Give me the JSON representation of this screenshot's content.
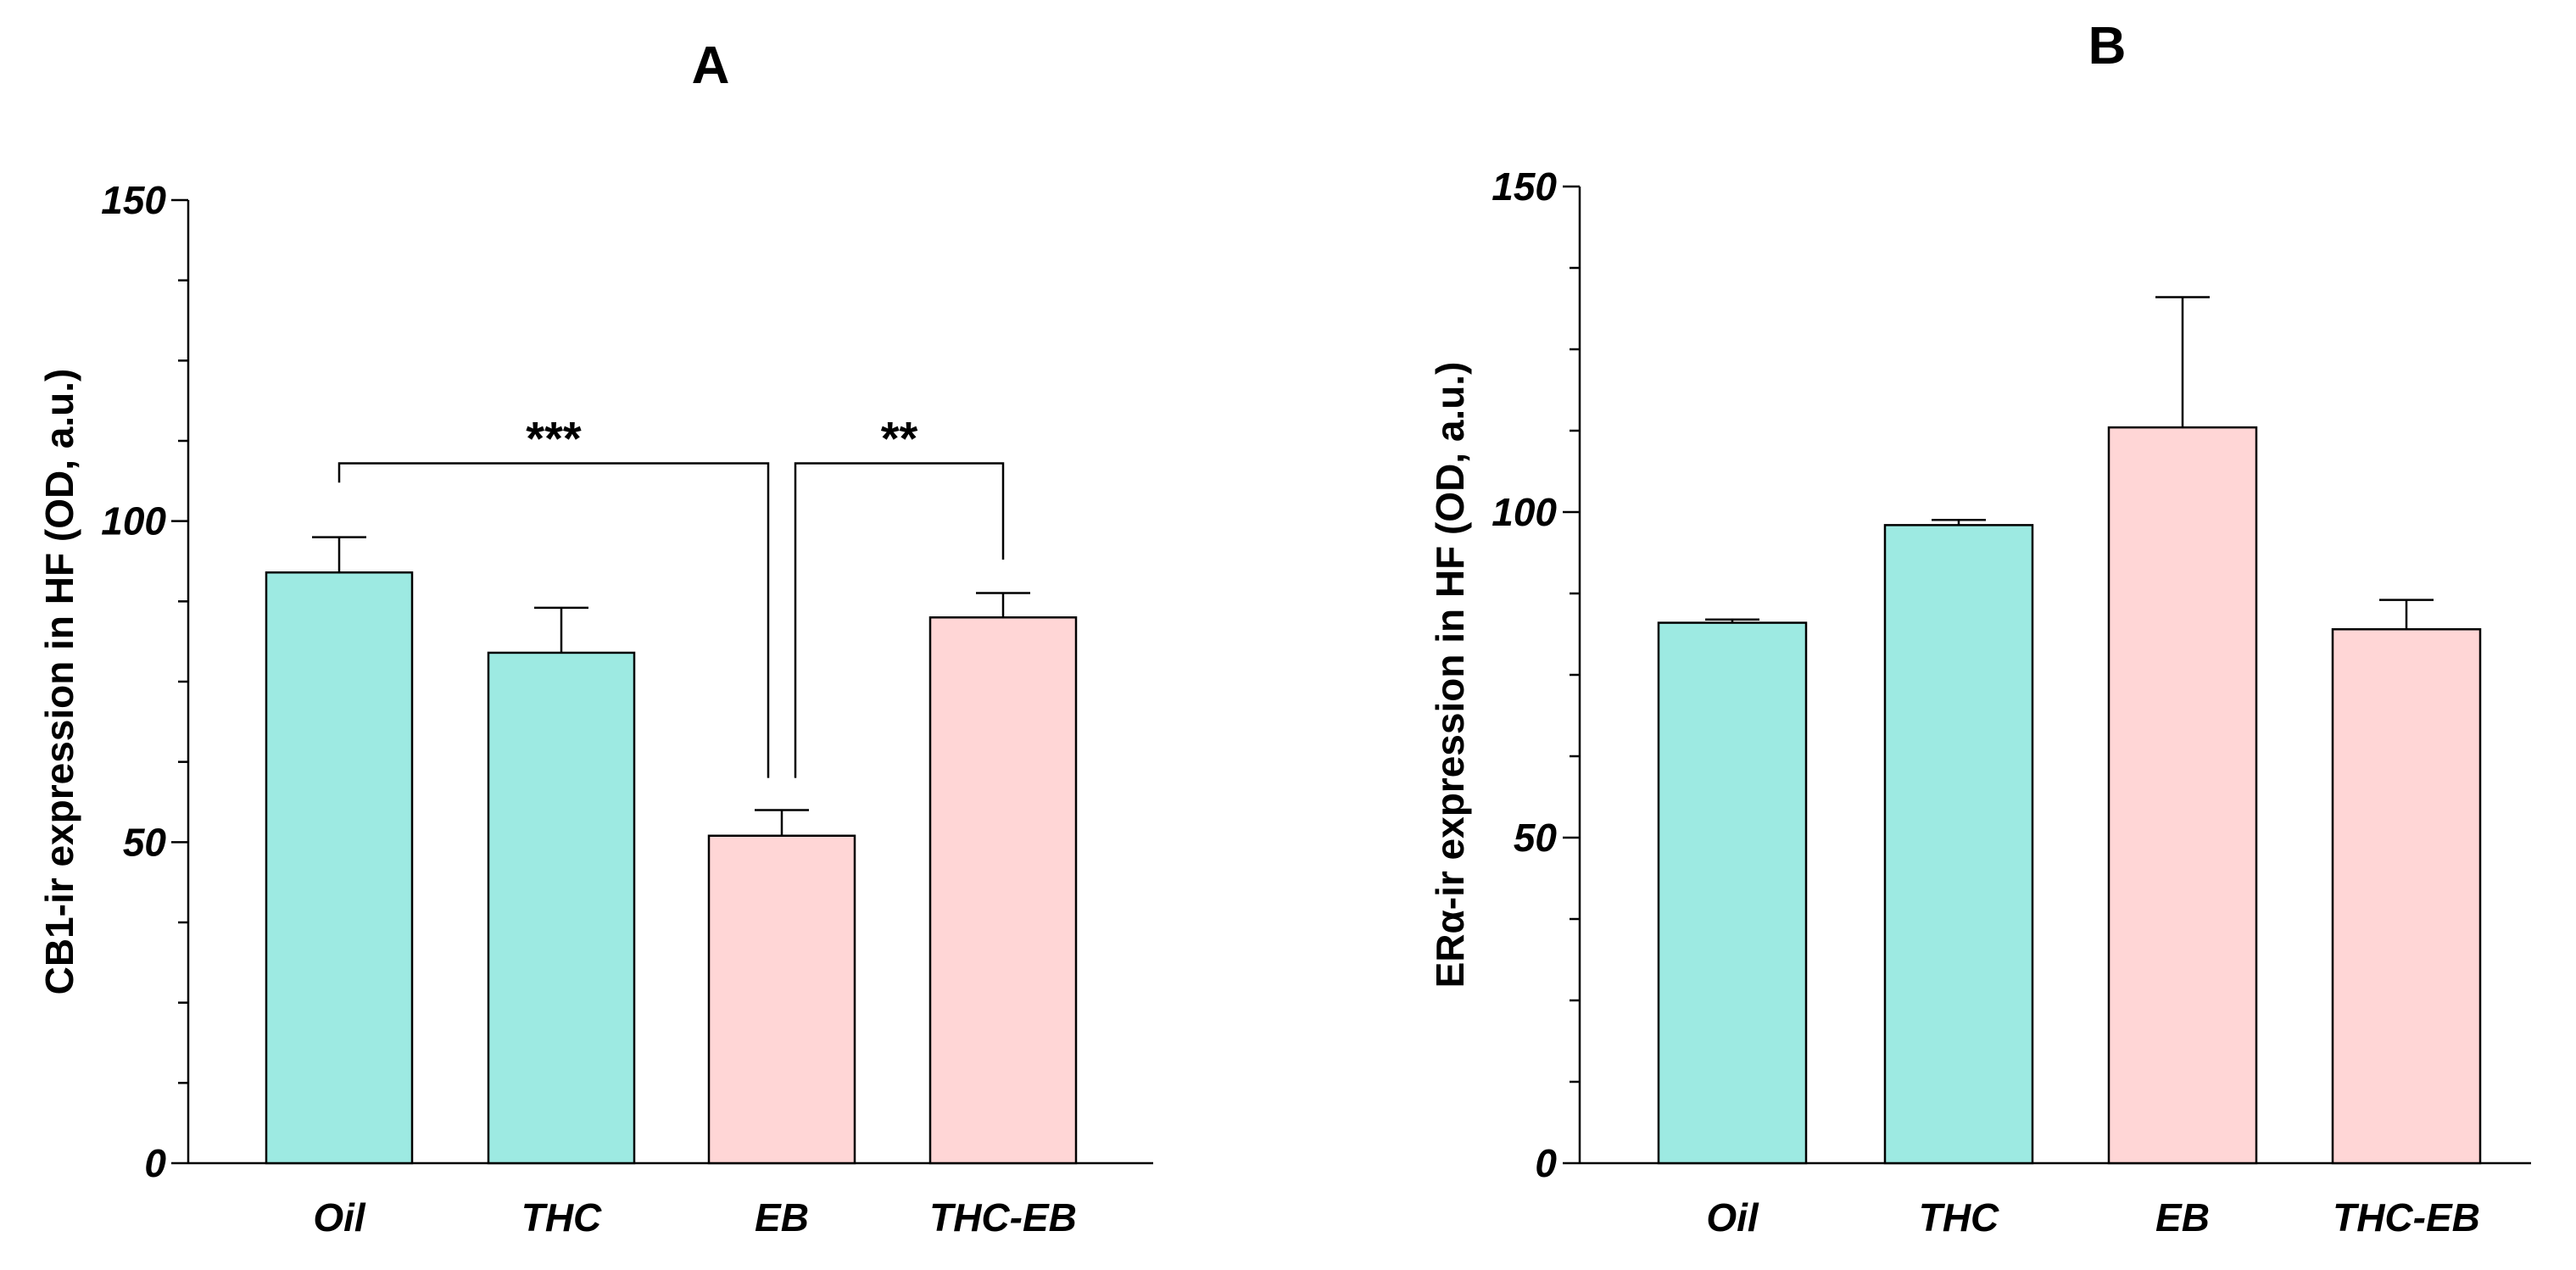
{
  "chart_data": [
    {
      "type": "bar",
      "panel_label": "A",
      "title": "A",
      "categories": [
        "Oil",
        "THC",
        "EB",
        "THC-EB"
      ],
      "values": [
        92,
        79.5,
        51,
        85
      ],
      "errors": [
        5.5,
        7,
        4,
        3.8
      ],
      "colors": [
        "#9deae2",
        "#9deae2",
        "#ffd6d6",
        "#ffd6d6"
      ],
      "ylabel": "CB1-ir expression in HF (OD, a.u.)",
      "xlabel": "",
      "ylim": [
        0,
        150
      ],
      "yticks": [
        0,
        50,
        100,
        150
      ],
      "tick_labels": [
        "0",
        "50",
        "100",
        "150"
      ],
      "minor_tick_step": 12.5,
      "annotations": [
        {
          "label": "***",
          "from": 0,
          "to": 2,
          "level": 109,
          "from_drop": 106,
          "to_drop": 60
        },
        {
          "label": "**",
          "from": 2,
          "to": 3,
          "level": 109,
          "from_drop": 60,
          "to_drop": 94
        }
      ]
    },
    {
      "type": "bar",
      "panel_label": "B",
      "title": "B",
      "categories": [
        "Oil",
        "THC",
        "EB",
        "THC-EB"
      ],
      "values": [
        83,
        98,
        113,
        82
      ],
      "errors": [
        0.5,
        0.8,
        20,
        4.5
      ],
      "colors": [
        "#9deae2",
        "#9deae2",
        "#ffd6d6",
        "#ffd6d6"
      ],
      "ylabel": "ERα-ir expression in HF (OD, a.u.)",
      "xlabel": "",
      "ylim": [
        0,
        150
      ],
      "yticks": [
        0,
        50,
        100,
        150
      ],
      "tick_labels": [
        "0",
        "50",
        "100",
        "150"
      ],
      "minor_tick_step": 12.5,
      "annotations": []
    }
  ]
}
